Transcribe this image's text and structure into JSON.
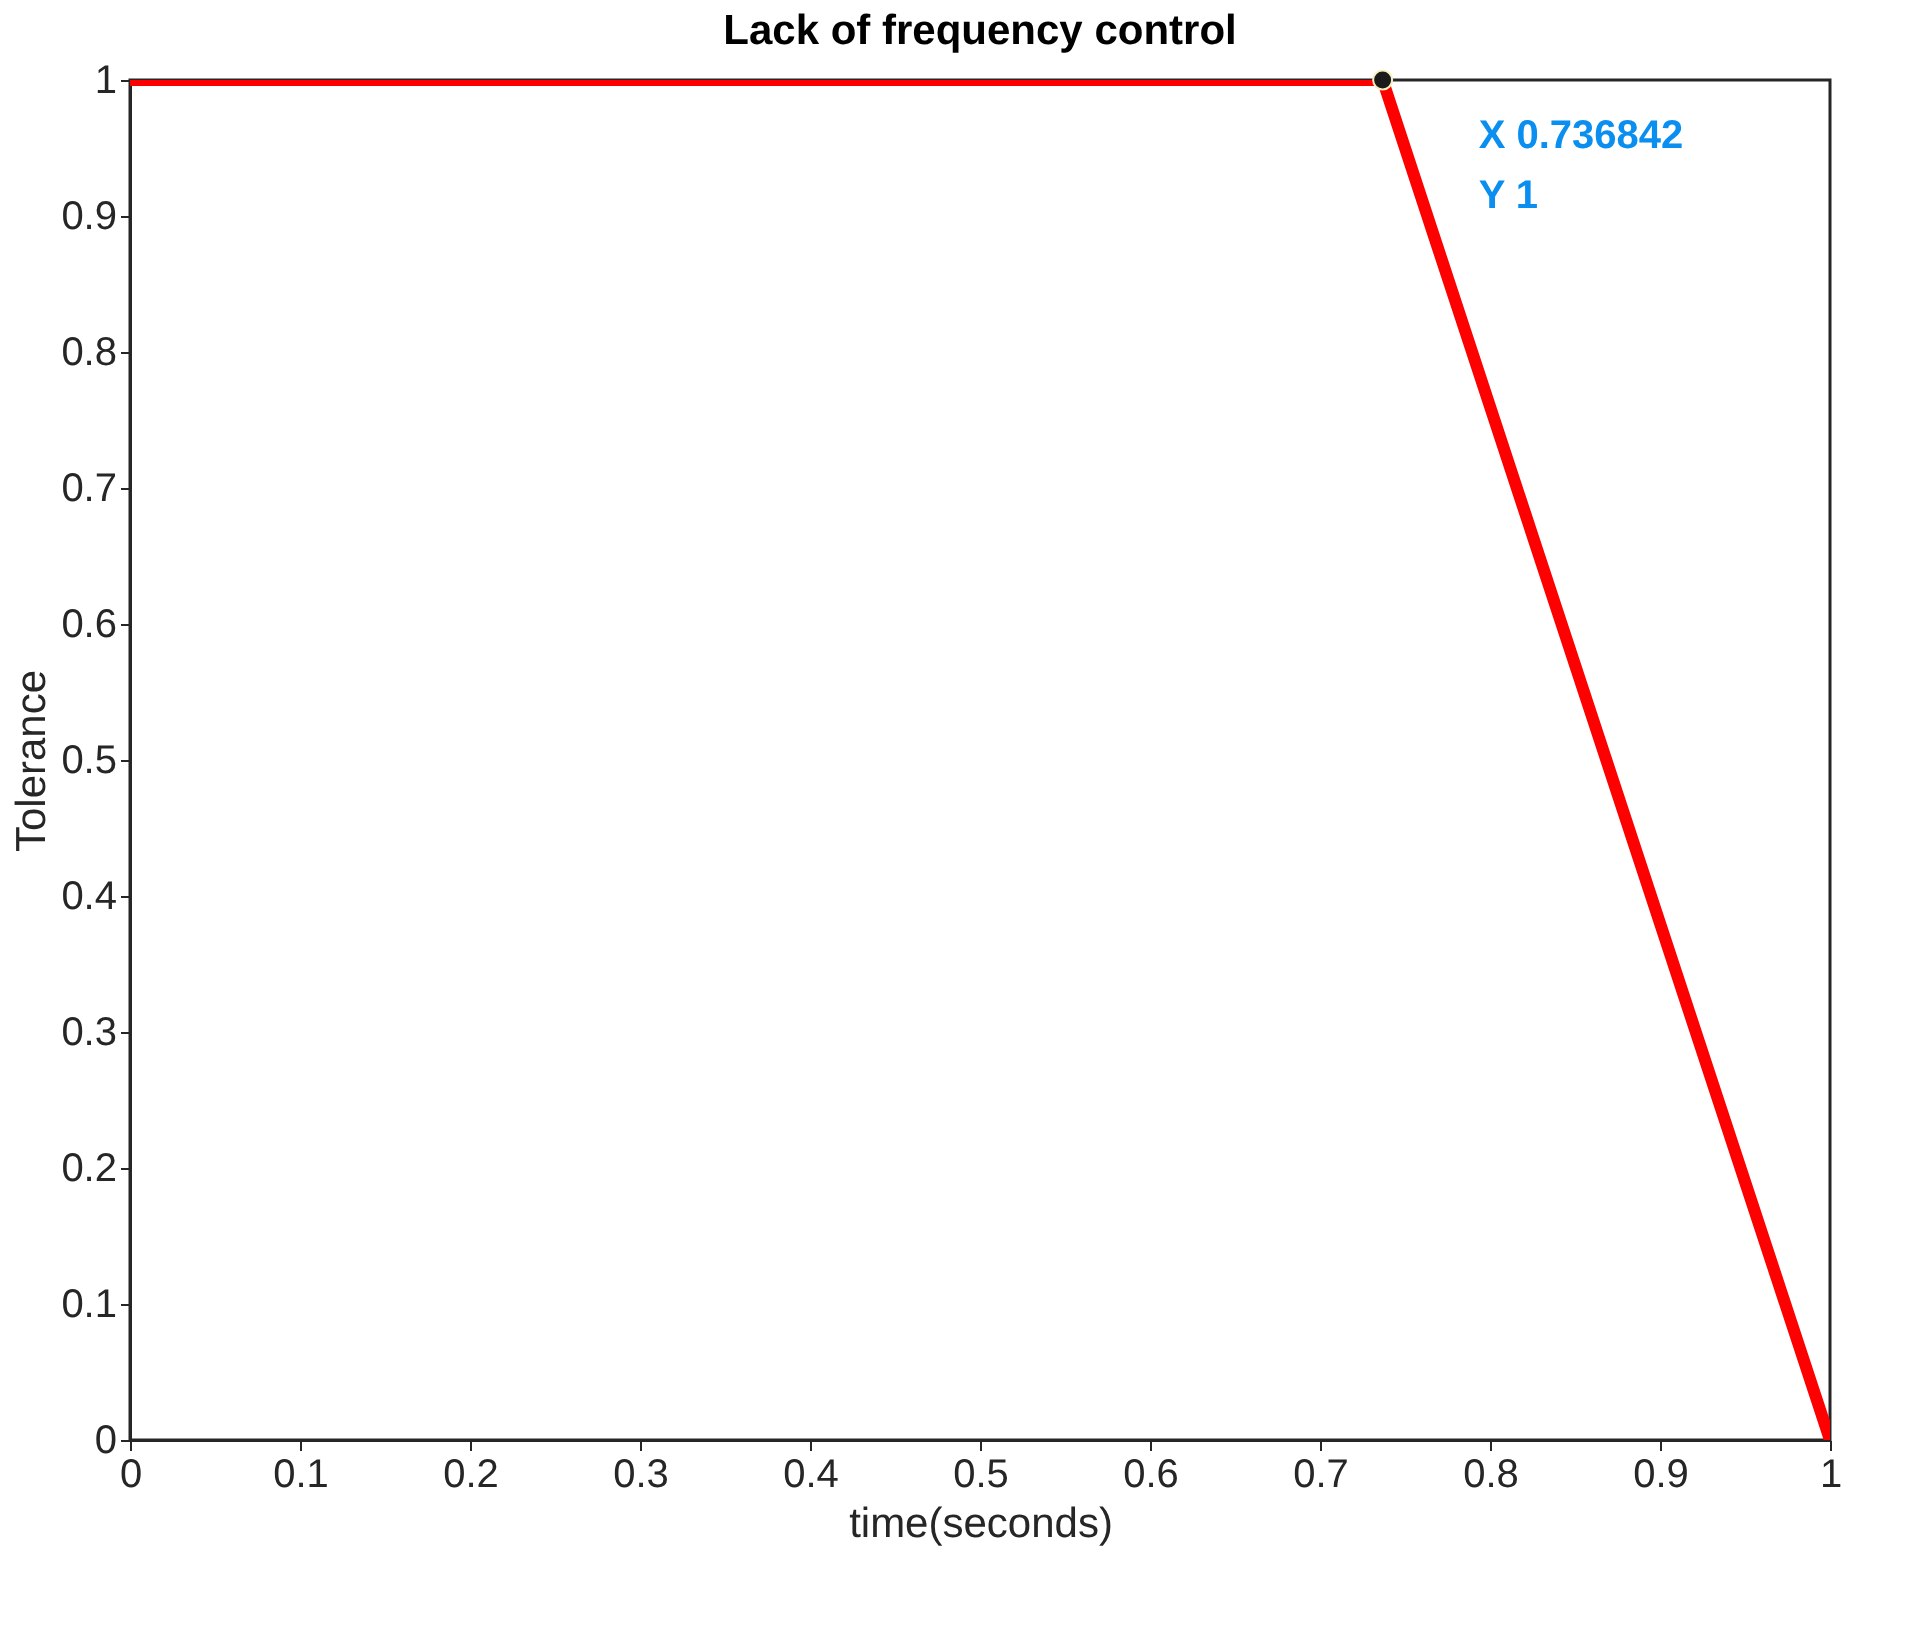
{
  "chart_data": {
    "type": "line",
    "title": "Lack of frequency control",
    "xlabel": "time(seconds)",
    "ylabel": "Tolerance",
    "x": [
      0,
      0.736842,
      1
    ],
    "series": [
      {
        "color": "#ff0000",
        "values": [
          1,
          1,
          0
        ]
      }
    ],
    "xlim": [
      0,
      1
    ],
    "ylim": [
      0,
      1
    ],
    "xticks": [
      0,
      0.1,
      0.2,
      0.3,
      0.4,
      0.5,
      0.6,
      0.7,
      0.8,
      0.9,
      1
    ],
    "yticks": [
      0,
      0.1,
      0.2,
      0.3,
      0.4,
      0.5,
      0.6,
      0.7,
      0.8,
      0.9,
      1
    ],
    "grid": false,
    "line_style": "solid",
    "annotations": [
      {
        "text": "X 0.736842\nY 1",
        "x": 0.736842,
        "y": 1
      }
    ]
  }
}
